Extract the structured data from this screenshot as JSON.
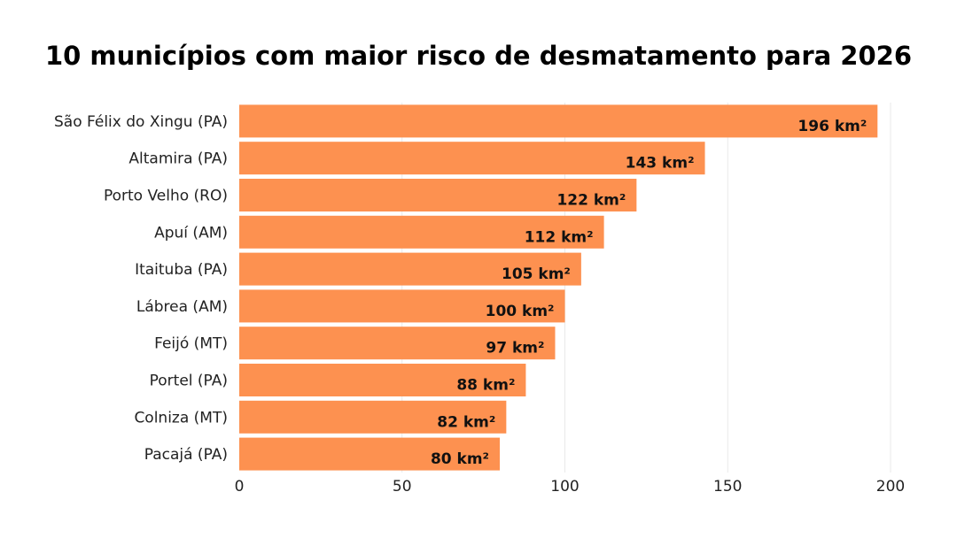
{
  "chart_data": {
    "type": "bar",
    "orientation": "horizontal",
    "title": "10 municípios com maior risco de desmatamento para 2026",
    "categories": [
      "São Félix do Xingu (PA)",
      "Altamira (PA)",
      "Porto Velho (RO)",
      "Apuí (AM)",
      "Itaituba (PA)",
      "Lábrea (AM)",
      "Feijó (MT)",
      "Portel (PA)",
      "Colniza (MT)",
      "Pacajá (PA)"
    ],
    "values": [
      196,
      143,
      122,
      112,
      105,
      100,
      97,
      88,
      82,
      80
    ],
    "data_labels": [
      "196 km²",
      "143 km²",
      "122 km²",
      "112 km²",
      "105 km²",
      "100 km²",
      "97 km²",
      "88 km²",
      "82 km²",
      "80 km²"
    ],
    "xticks": [
      0,
      50,
      100,
      150,
      200
    ],
    "xlim": [
      0,
      200
    ],
    "xlabel": "",
    "ylabel": "",
    "grid": "vertical",
    "legend": "none",
    "bar_color": "#fd9150",
    "grid_color": "#e9e9e9"
  }
}
